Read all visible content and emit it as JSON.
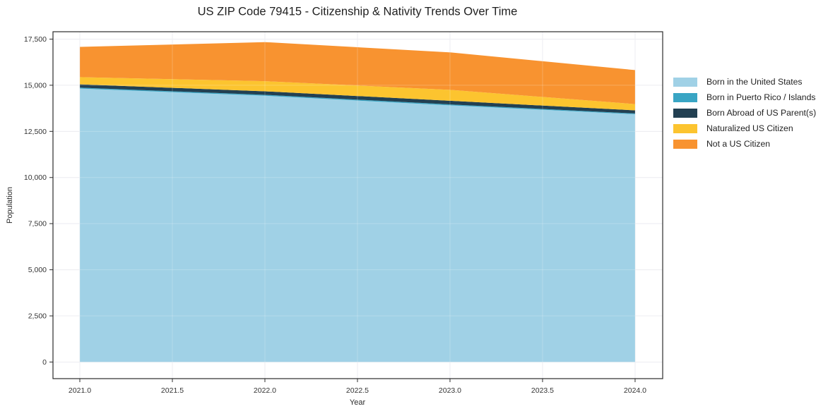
{
  "title": "US ZIP Code 79415 - Citizenship & Nativity Trends Over Time",
  "chart_data": {
    "type": "area",
    "stacked": true,
    "title": "US ZIP Code 79415 - Citizenship & Nativity Trends Over Time",
    "xlabel": "Year",
    "ylabel": "Population",
    "x": [
      2021,
      2022,
      2023,
      2024
    ],
    "series": [
      {
        "name": "Born in the United States",
        "color": "#a0d1e6",
        "values": [
          14820,
          14430,
          13910,
          13430
        ]
      },
      {
        "name": "Born in Puerto Rico / Islands",
        "color": "#39a5c4",
        "values": [
          50,
          50,
          50,
          40
        ]
      },
      {
        "name": "Born Abroad of US Parent(s)",
        "color": "#224052",
        "values": [
          180,
          190,
          200,
          170
        ]
      },
      {
        "name": "Naturalized US Citizen",
        "color": "#fcc42f",
        "values": [
          390,
          550,
          590,
          340
        ]
      },
      {
        "name": "Not a US Citizen",
        "color": "#f89330",
        "values": [
          1640,
          2120,
          2030,
          1840
        ]
      }
    ],
    "totals": [
      17080,
      17340,
      16780,
      15820
    ],
    "x_ticks": [
      2021.0,
      2021.5,
      2022.0,
      2022.5,
      2023.0,
      2023.5,
      2024.0
    ],
    "x_tick_labels": [
      "2021.0",
      "2021.5",
      "2022.0",
      "2022.5",
      "2023.0",
      "2023.5",
      "2024.0"
    ],
    "y_ticks": [
      0,
      2500,
      5000,
      7500,
      10000,
      12500,
      15000,
      17500
    ],
    "y_tick_labels": [
      "0",
      "2,500",
      "5,000",
      "7,500",
      "10,000",
      "12,500",
      "15,000",
      "17,500"
    ],
    "xlim": [
      2020.855,
      2024.149
    ],
    "ylim": [
      -900,
      17900
    ],
    "grid": true,
    "legend_position": "right-outside",
    "colors": {
      "grid": "#e7e7ee",
      "spine": "#2b2b2b",
      "background": "#ffffff"
    }
  }
}
